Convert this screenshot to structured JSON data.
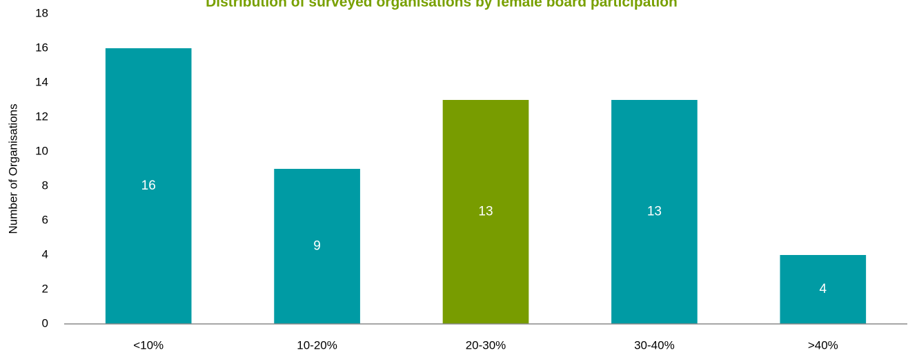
{
  "chart_data": {
    "type": "bar",
    "title": "Distribution of surveyed organisations by female board participation",
    "ylabel": "Number of Organisations",
    "categories": [
      "<10%",
      "10-20%",
      "20-30%",
      "30-40%",
      ">40%"
    ],
    "values": [
      16,
      9,
      13,
      13,
      4
    ],
    "colors": [
      "#009ba4",
      "#009ba4",
      "#789c00",
      "#009ba4",
      "#009ba4"
    ],
    "ylim": [
      0,
      18
    ],
    "yticks": [
      0,
      2,
      4,
      6,
      8,
      10,
      12,
      14,
      16,
      18
    ],
    "grid": false,
    "data_labels": true
  }
}
